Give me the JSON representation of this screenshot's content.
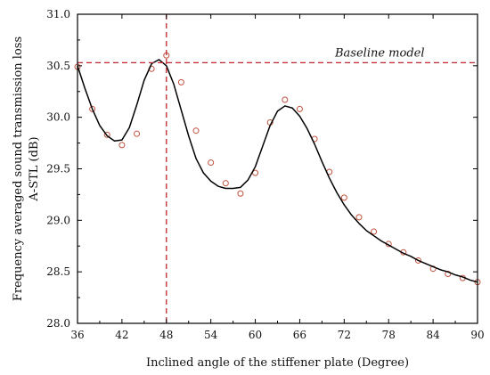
{
  "chart_data": {
    "type": "line",
    "xlabel": "Inclined angle of the stiffener plate (Degree)",
    "ylabel_lines": [
      "Frequency averaged sound transmission loss",
      "A-STL (dB)"
    ],
    "xlim": [
      36,
      90
    ],
    "ylim": [
      28.0,
      31.0
    ],
    "x_ticks": [
      36,
      42,
      48,
      54,
      60,
      66,
      72,
      78,
      84,
      90
    ],
    "x_tick_labels": [
      "36",
      "42",
      "48",
      "54",
      "60",
      "66",
      "72",
      "78",
      "84",
      "90"
    ],
    "y_ticks": [
      28.0,
      28.5,
      29.0,
      29.5,
      30.0,
      30.5,
      31.0
    ],
    "y_tick_labels": [
      "28.0",
      "28.5",
      "29.0",
      "29.5",
      "30.0",
      "30.5",
      "31.0"
    ],
    "grid": false,
    "series": [
      {
        "style": "markers",
        "marker": "open-circle",
        "color": "#c0503c",
        "x": [
          36,
          38,
          40,
          42,
          44,
          46,
          48,
          50,
          52,
          54,
          56,
          58,
          60,
          62,
          64,
          66,
          68,
          70,
          72,
          74,
          76,
          78,
          80,
          82,
          84,
          86,
          88,
          90
        ],
        "y": [
          30.49,
          30.08,
          29.83,
          29.73,
          29.84,
          30.47,
          30.6,
          30.34,
          29.87,
          29.56,
          29.36,
          29.26,
          29.46,
          29.95,
          30.17,
          30.08,
          29.79,
          29.47,
          29.22,
          29.03,
          28.89,
          28.77,
          28.69,
          28.61,
          28.53,
          28.48,
          28.44,
          28.4
        ]
      },
      {
        "style": "line",
        "color": "#000000",
        "x": [
          36,
          37,
          38,
          39,
          40,
          41,
          42,
          43,
          44,
          45,
          46,
          47,
          48,
          49,
          50,
          51,
          52,
          53,
          54,
          55,
          56,
          57,
          58,
          59,
          60,
          61,
          62,
          63,
          64,
          65,
          66,
          67,
          68,
          69,
          70,
          71,
          72,
          73,
          74,
          75,
          76,
          77,
          78,
          79,
          80,
          81,
          82,
          83,
          84,
          85,
          86,
          87,
          88,
          89,
          90
        ],
        "y": [
          30.5,
          30.28,
          30.08,
          29.92,
          29.82,
          29.77,
          29.78,
          29.9,
          30.12,
          30.36,
          30.52,
          30.56,
          30.5,
          30.32,
          30.07,
          29.82,
          29.6,
          29.46,
          29.38,
          29.33,
          29.31,
          29.31,
          29.32,
          29.39,
          29.52,
          29.72,
          29.92,
          30.06,
          30.11,
          30.09,
          30.01,
          29.89,
          29.74,
          29.57,
          29.41,
          29.27,
          29.15,
          29.05,
          28.97,
          28.9,
          28.85,
          28.8,
          28.76,
          28.72,
          28.68,
          28.65,
          28.61,
          28.58,
          28.55,
          28.52,
          28.5,
          28.47,
          28.45,
          28.42,
          28.4
        ]
      }
    ],
    "reference_lines": [
      {
        "orientation": "horizontal",
        "value": 30.53,
        "color": "#c0282d",
        "dash": "dashed",
        "label": "Baseline model"
      },
      {
        "orientation": "vertical",
        "value": 48,
        "color": "#c0282d",
        "dash": "dashed"
      }
    ]
  }
}
